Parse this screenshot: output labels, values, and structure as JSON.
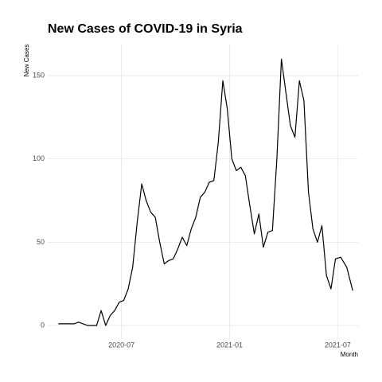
{
  "chart_data": {
    "type": "line",
    "title": "New Cases of COVID-19 in Syria",
    "x_label": "Month",
    "y_label": "New Cases",
    "x": [
      "2020-03",
      "2020-04",
      "2020-04",
      "2020-04",
      "2020-04",
      "2020-05",
      "2020-05",
      "2020-05",
      "2020-05",
      "2020-06",
      "2020-06",
      "2020-06",
      "2020-06",
      "2020-07",
      "2020-07",
      "2020-07",
      "2020-07",
      "2020-08",
      "2020-08",
      "2020-08",
      "2020-08",
      "2020-09",
      "2020-09",
      "2020-09",
      "2020-09",
      "2020-10",
      "2020-10",
      "2020-10",
      "2020-10",
      "2020-11",
      "2020-11",
      "2020-11",
      "2020-11",
      "2020-12",
      "2020-12",
      "2020-12",
      "2020-12",
      "2021-01",
      "2021-01",
      "2021-01",
      "2021-01",
      "2021-02",
      "2021-02",
      "2021-02",
      "2021-02",
      "2021-03",
      "2021-03",
      "2021-03",
      "2021-03",
      "2021-04",
      "2021-04",
      "2021-04",
      "2021-04",
      "2021-05",
      "2021-05",
      "2021-05",
      "2021-05",
      "2021-06",
      "2021-06",
      "2021-06",
      "2021-06",
      "2021-07",
      "2021-07",
      "2021-07"
    ],
    "values": [
      1,
      1,
      1,
      2,
      1,
      0,
      0,
      0,
      9,
      0,
      6,
      9,
      14,
      15,
      22,
      35,
      62,
      85,
      75,
      68,
      65,
      50,
      37,
      39,
      40,
      46,
      53,
      48,
      58,
      65,
      77,
      80,
      86,
      87,
      110,
      147,
      130,
      100,
      93,
      95,
      90,
      72,
      55,
      67,
      47,
      56,
      57,
      100,
      160,
      140,
      120,
      113,
      147,
      135,
      80,
      58,
      50,
      60,
      30,
      22,
      40,
      41,
      35,
      21
    ],
    "color": "#000000",
    "xlim": [
      "2020-03",
      "2021-08"
    ],
    "xticks": [
      "2020-07",
      "2021-01",
      "2021-07"
    ],
    "ylim": [
      -5,
      167
    ],
    "yticks": [
      0,
      50,
      100,
      150
    ],
    "grid": true
  }
}
